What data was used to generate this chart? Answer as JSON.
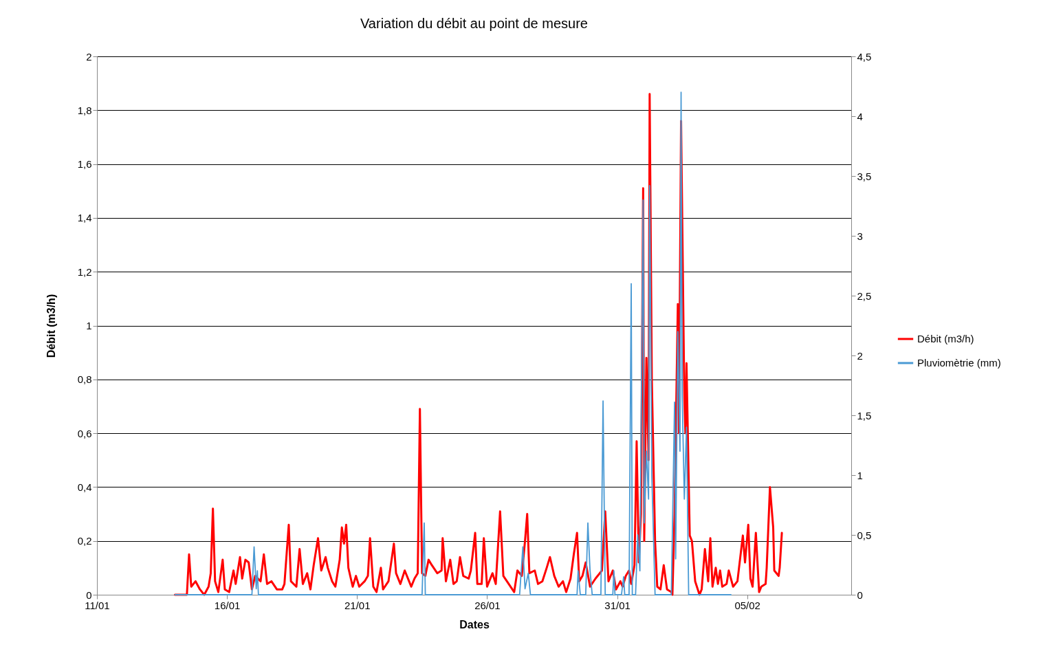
{
  "chart_data": {
    "type": "line",
    "title": "Variation du débit au point de mesure",
    "xlabel": "Dates",
    "ylabel": "Débit (m3/h)",
    "xlim": [
      "--01-11",
      "--02-09"
    ],
    "xticks": [
      {
        "value": "--01-11",
        "label": "11/01"
      },
      {
        "value": "--01-16",
        "label": "16/01"
      },
      {
        "value": "--01-21",
        "label": "21/01"
      },
      {
        "value": "--01-26",
        "label": "26/01"
      },
      {
        "value": "--01-31",
        "label": "31/01"
      },
      {
        "value": "--02-05",
        "label": "05/02"
      }
    ],
    "ylim": [
      0,
      2
    ],
    "yticks": [
      {
        "value": 0,
        "label": "0"
      },
      {
        "value": 0.2,
        "label": "0,2"
      },
      {
        "value": 0.4,
        "label": "0,4"
      },
      {
        "value": 0.6,
        "label": "0,6"
      },
      {
        "value": 0.8,
        "label": "0,8"
      },
      {
        "value": 1,
        "label": "1"
      },
      {
        "value": 1.2,
        "label": "1,2"
      },
      {
        "value": 1.4,
        "label": "1,4"
      },
      {
        "value": 1.6,
        "label": "1,6"
      },
      {
        "value": 1.8,
        "label": "1,8"
      },
      {
        "value": 2,
        "label": "2"
      }
    ],
    "y2lim": [
      0,
      4.5
    ],
    "y2ticks": [
      {
        "value": 0,
        "label": "0"
      },
      {
        "value": 0.5,
        "label": "0,5"
      },
      {
        "value": 1,
        "label": "1"
      },
      {
        "value": 1.5,
        "label": "1,5"
      },
      {
        "value": 2,
        "label": "2"
      },
      {
        "value": 2.5,
        "label": "2,5"
      },
      {
        "value": 3,
        "label": "3"
      },
      {
        "value": 3.5,
        "label": "3,5"
      },
      {
        "value": 4,
        "label": "4"
      },
      {
        "value": 4.5,
        "label": "4,5"
      }
    ],
    "grid": "y",
    "legend": "right",
    "marker": "none",
    "series": [
      {
        "name": "Débit (m3/h)",
        "color": "#ff0000",
        "x": [
          "--01-14T00:00",
          "--01-14T11:00",
          "--01-14T13:00",
          "--01-14T15:00",
          "--01-14T19:00",
          "--01-14T23:00",
          "--01-15T03:00",
          "--01-15T07:00",
          "--01-15T09:00",
          "--01-15T11:00",
          "--01-15T13:00",
          "--01-15T16:00",
          "--01-15T20:00",
          "--01-15T22:00",
          "--01-16T02:00",
          "--01-16T06:00",
          "--01-16T08:00",
          "--01-16T12:00",
          "--01-16T14:00",
          "--01-16T17:00",
          "--01-16T20:00",
          "--01-16T23:00",
          "--01-17T02:00",
          "--01-17T07:00",
          "--01-17T10:00",
          "--01-17T13:00",
          "--01-17T17:00",
          "--01-17T22:00",
          "--01-18T03:00",
          "--01-18T05:00",
          "--01-18T09:00",
          "--01-18T11:00",
          "--01-18T16:00",
          "--01-18T19:00",
          "--01-18T22:00",
          "--01-19T02:00",
          "--01-19T05:00",
          "--01-19T08:00",
          "--01-19T12:00",
          "--01-19T15:00",
          "--01-19T19:00",
          "--01-19T21:00",
          "--01-20T01:00",
          "--01-20T04:00",
          "--01-20T08:00",
          "--01-20T10:00",
          "--01-20T12:00",
          "--01-20T14:00",
          "--01-20T16:00",
          "--01-20T20:00",
          "--01-20T23:00",
          "--01-21T02:00",
          "--01-21T07:00",
          "--01-21T10:00",
          "--01-21T12:00",
          "--01-21T15:00",
          "--01-21T18:00",
          "--01-21T22:00",
          "--01-22T00:00",
          "--01-22T05:00",
          "--01-22T10:00",
          "--01-22T12:00",
          "--01-22T16:00",
          "--01-22T20:00",
          "--01-23T00:00",
          "--01-23T02:00",
          "--01-23T05:00",
          "--01-23T08:00",
          "--01-23T10:00",
          "--01-23T12:00",
          "--01-23T15:00",
          "--01-23T18:00",
          "--01-23T21:00",
          "--01-24T02:00",
          "--01-24T06:00",
          "--01-24T07:00",
          "--01-24T10:00",
          "--01-24T14:00",
          "--01-24T17:00",
          "--01-24T20:00",
          "--01-24T23:00",
          "--01-25T02:00",
          "--01-25T07:00",
          "--01-25T09:00",
          "--01-25T13:00",
          "--01-25T15:00",
          "--01-25T19:00",
          "--01-25T21:00",
          "--01-26T00:00",
          "--01-26T05:00",
          "--01-26T08:00",
          "--01-26T12:00",
          "--01-26T15:00",
          "--01-26T20:00",
          "--01-27T01:00",
          "--01-27T04:00",
          "--01-27T08:00",
          "--01-27T11:00",
          "--01-27T13:00",
          "--01-27T15:00",
          "--01-27T20:00",
          "--01-27T23:00",
          "--01-28T03:00",
          "--01-28T07:00",
          "--01-28T10:00",
          "--01-28T14:00",
          "--01-28T18:00",
          "--01-28T22:00",
          "--01-29T01:00",
          "--01-29T05:00",
          "--01-29T08:00",
          "--01-29T11:00",
          "--01-29T13:00",
          "--01-29T16:00",
          "--01-29T19:00",
          "--01-29T23:00",
          "--01-30T04:00",
          "--01-30T10:00",
          "--01-30T13:00",
          "--01-30T16:00",
          "--01-30T20:00",
          "--01-30T23:00",
          "--01-31T03:00",
          "--01-31T05:00",
          "--01-31T08:00",
          "--01-31T11:00",
          "--01-31T13:00",
          "--01-31T16:00",
          "--01-31T18:00",
          "--01-31T20:00",
          "--01-31T22:00",
          "--02-01T00:00",
          "--02-01T01:00",
          "--02-01T03:00",
          "--02-01T05:00",
          "--02-01T06:00",
          "--02-01T08:00",
          "--02-01T11:00",
          "--02-01T13:00",
          "--02-01T16:00",
          "--02-01T19:00",
          "--02-01T22:00",
          "--02-02T02:00",
          "--02-02T03:00",
          "--02-02T05:00",
          "--02-02T08:00",
          "--02-02T09:00",
          "--02-02T11:00",
          "--02-02T14:00",
          "--02-02T15:00",
          "--02-02T16:00",
          "--02-02T19:00",
          "--02-02T21:00",
          "--02-03T00:00",
          "--02-03T04:00",
          "--02-03T06:00",
          "--02-03T09:00",
          "--02-03T12:00",
          "--02-03T14:00",
          "--02-03T16:00",
          "--02-03T19:00",
          "--02-03T21:00",
          "--02-03T23:00",
          "--02-04T01:00",
          "--02-04T05:00",
          "--02-04T07:00",
          "--02-04T11:00",
          "--02-04T15:00",
          "--02-04T20:00",
          "--02-04T22:00",
          "--02-05T01:00",
          "--02-05T03:00",
          "--02-05T05:00",
          "--02-05T08:00",
          "--02-05T11:00",
          "--02-05T13:00",
          "--02-05T17:00",
          "--02-05T18:00",
          "--02-05T21:00",
          "--02-06T00:00",
          "--02-06T01:00",
          "--02-06T05:00",
          "--02-06T06:00",
          "--02-06T08:00"
        ],
        "values": [
          0,
          0,
          0.15,
          0.03,
          0.05,
          0.02,
          0,
          0.03,
          0.08,
          0.32,
          0.05,
          0.01,
          0.13,
          0.02,
          0.01,
          0.09,
          0.04,
          0.14,
          0.06,
          0.13,
          0.12,
          0.02,
          0.07,
          0.05,
          0.15,
          0.04,
          0.05,
          0.02,
          0.02,
          0.04,
          0.26,
          0.05,
          0.03,
          0.17,
          0.04,
          0.08,
          0.02,
          0.11,
          0.21,
          0.09,
          0.14,
          0.1,
          0.05,
          0.03,
          0.13,
          0.25,
          0.19,
          0.26,
          0.1,
          0.03,
          0.07,
          0.03,
          0.05,
          0.07,
          0.21,
          0.03,
          0.01,
          0.1,
          0.02,
          0.05,
          0.19,
          0.08,
          0.04,
          0.09,
          0.05,
          0.03,
          0.06,
          0.08,
          0.69,
          0.08,
          0.07,
          0.13,
          0.11,
          0.08,
          0.09,
          0.21,
          0.05,
          0.13,
          0.04,
          0.05,
          0.14,
          0.07,
          0.06,
          0.09,
          0.23,
          0.04,
          0.04,
          0.21,
          0.03,
          0.08,
          0.04,
          0.31,
          0.07,
          0.04,
          0.01,
          0.09,
          0.07,
          0.2,
          0.3,
          0.08,
          0.09,
          0.04,
          0.05,
          0.1,
          0.14,
          0.07,
          0.03,
          0.05,
          0.01,
          0.06,
          0.15,
          0.23,
          0.05,
          0.07,
          0.12,
          0.03,
          0.06,
          0.09,
          0.31,
          0.05,
          0.09,
          0.02,
          0.05,
          0.03,
          0.07,
          0.09,
          0.04,
          0.11,
          0.57,
          0.12,
          0.3,
          1.51,
          0.2,
          0.88,
          0.5,
          1.86,
          0.8,
          0.2,
          0.03,
          0.02,
          0.11,
          0.02,
          0.01,
          0,
          0.3,
          1.08,
          0.6,
          1.76,
          0.73,
          0.6,
          0.86,
          0.22,
          0.2,
          0.05,
          0,
          0.02,
          0.17,
          0.05,
          0.21,
          0.03,
          0.1,
          0.04,
          0.09,
          0.03,
          0.04,
          0.09,
          0.03,
          0.05,
          0.22,
          0.12,
          0.26,
          0.06,
          0.03,
          0.23,
          0.01,
          0.03,
          0.04,
          0.1,
          0.4,
          0.25,
          0.09,
          0.07,
          0.1,
          0.23
        ]
      },
      {
        "name": "Pluviomètrie (mm)",
        "color": "#4a9ad4",
        "axis": "y2",
        "x": [
          "--01-14T00:00",
          "--01-16T23:00",
          "--01-17T01:00",
          "--01-17T03:00",
          "--01-17T04:00",
          "--01-17T05:00",
          "--01-23T12:00",
          "--01-23T14:00",
          "--01-23T15:00",
          "--01-27T06:00",
          "--01-27T09:00",
          "--01-27T11:00",
          "--01-27T14:00",
          "--01-27T16:00",
          "--01-29T11:00",
          "--01-29T12:00",
          "--01-29T14:00",
          "--01-29T19:00",
          "--01-29T21:00",
          "--01-29T23:00",
          "--01-30T01:00",
          "--01-30T09:00",
          "--01-30T11:00",
          "--01-30T13:00",
          "--01-30T20:00",
          "--01-30T21:00",
          "--01-30T22:00",
          "--01-31T04:00",
          "--01-31T06:00",
          "--01-31T07:00",
          "--01-31T11:00",
          "--01-31T13:00",
          "--01-31T14:00",
          "--01-31T17:00",
          "--01-31T19:00",
          "--01-31T21:00",
          "--02-01T00:00",
          "--02-01T01:00",
          "--02-01T03:00",
          "--02-01T05:00",
          "--02-01T06:00",
          "--02-01T08:00",
          "--02-01T11:00",
          "--02-02T02:00",
          "--02-02T05:00",
          "--02-02T06:00",
          "--02-02T08:00",
          "--02-02T10:00",
          "--02-02T11:00",
          "--02-02T12:00",
          "--02-02T14:00",
          "--02-02T16:00",
          "--02-02T18:00",
          "--02-04T09:00"
        ],
        "values": [
          0,
          0,
          0.4,
          0.05,
          0.2,
          0,
          0,
          0.6,
          0,
          0,
          0.4,
          0.05,
          0.18,
          0,
          0,
          0.2,
          0,
          0,
          0.6,
          0.2,
          0,
          0,
          1.62,
          0,
          0,
          0.2,
          0,
          0,
          0.15,
          0,
          0,
          2.6,
          0,
          0,
          0.5,
          0.2,
          3.3,
          0.6,
          1.2,
          0.8,
          3.42,
          1,
          0,
          0,
          1.61,
          0.3,
          2.2,
          1.2,
          4.2,
          1.67,
          0.8,
          1.4,
          0,
          0
        ]
      }
    ]
  }
}
